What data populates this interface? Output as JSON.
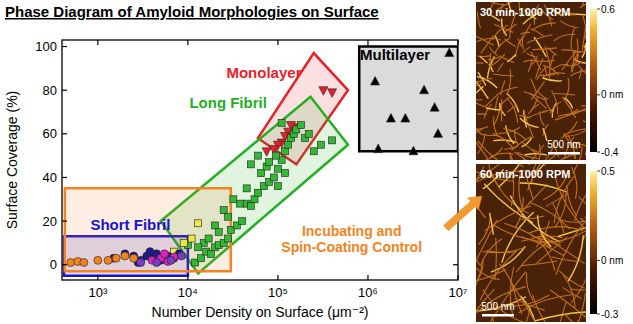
{
  "chart_data": {
    "type": "scatter",
    "title": "Phase Diagram of Amyloid Morphologies on Surface",
    "x_label": "Number Density on Surface (μm⁻²)",
    "y_label": "Surface Coverage (%)",
    "log": "x",
    "grid": false,
    "xlim": [
      400,
      10000000
    ],
    "xticks": [
      {
        "value": 1000,
        "label": "10³"
      },
      {
        "value": 10000,
        "label": "10⁴"
      },
      {
        "value": 100000,
        "label": "10⁵"
      },
      {
        "value": 1000000,
        "label": "10⁶"
      },
      {
        "value": 10000000,
        "label": "10⁷"
      }
    ],
    "ylim": [
      -7,
      103
    ],
    "yticks": [
      0,
      20,
      40,
      60,
      80,
      100
    ],
    "regions": [
      {
        "label": "Multilayer",
        "color": "#000000",
        "corners": [
          [
            800000,
            52
          ],
          [
            10000000,
            52
          ],
          [
            10000000,
            100
          ],
          [
            800000,
            100
          ]
        ],
        "text_x": 2000000,
        "text_y": 96
      },
      {
        "label": "Monolayer",
        "color": "#e8202a",
        "corners": [
          [
            60000,
            58
          ],
          [
            160000,
            46
          ],
          [
            600000,
            80
          ],
          [
            250000,
            97
          ]
        ],
        "text_x": 70000,
        "text_y": 88
      },
      {
        "label": "Long Fibril",
        "color": "#22b022",
        "corners": [
          [
            5000,
            20
          ],
          [
            13000,
            -4
          ],
          [
            600000,
            55
          ],
          [
            230000,
            77
          ]
        ],
        "text_x": 28000,
        "text_y": 74
      },
      {
        "label": "Short Fibril",
        "color": "#1515cc",
        "corners": [
          [
            420,
            -5
          ],
          [
            10000,
            -5
          ],
          [
            10000,
            13
          ],
          [
            420,
            13
          ]
        ],
        "text_x": 2300,
        "text_y": 18
      },
      {
        "label": [
          "Incubating  and",
          "Spin-Coating Control"
        ],
        "color": "#f58220",
        "corners": [
          [
            430,
            -3
          ],
          [
            30000,
            -3
          ],
          [
            30000,
            35
          ],
          [
            430,
            35
          ]
        ],
        "text_x": 660000,
        "text_y": 12
      }
    ],
    "series": [
      {
        "color": "#000000",
        "marker": "triangle-up",
        "x": [
          1200000,
          8000000,
          5500000,
          6000000,
          1800000,
          2600000,
          1300000,
          3200000,
          4200000
        ],
        "values": [
          84,
          97,
          72,
          60,
          67,
          67,
          53,
          52,
          80
        ]
      },
      {
        "color": "#e8202a",
        "marker": "triangle-down",
        "x": [
          320000,
          400000,
          150000,
          140000,
          130000,
          120000,
          110000,
          100000,
          90000,
          75000
        ],
        "values": [
          80,
          79,
          63,
          64,
          61,
          59,
          56,
          55,
          53,
          52
        ]
      },
      {
        "color": "#33b833",
        "marker": "square",
        "x": [
          12000,
          14000,
          16000,
          18000,
          20000,
          22000,
          25000,
          15000,
          17000,
          28000,
          30000,
          35000,
          40000,
          38000,
          45000,
          50000,
          55000,
          60000,
          70000,
          80000,
          65000,
          75000,
          90000,
          100000,
          110000,
          120000,
          130000,
          140000,
          150000,
          160000,
          180000,
          200000,
          220000,
          250000,
          300000,
          400000,
          60000,
          50000,
          80000,
          95000,
          100000,
          120000,
          45000,
          32000,
          25000,
          20000,
          28000,
          13000,
          10000,
          22000,
          110000
        ],
        "values": [
          1,
          3,
          6,
          5,
          8,
          9,
          10,
          10,
          12,
          12,
          16,
          18,
          20,
          28,
          28,
          27,
          30,
          33,
          36,
          38,
          42,
          45,
          40,
          44,
          48,
          52,
          55,
          58,
          60,
          62,
          64,
          58,
          60,
          52,
          55,
          57,
          50,
          46,
          47,
          50,
          36,
          42,
          35,
          30,
          25,
          18,
          22,
          8,
          9,
          15,
          65
        ]
      },
      {
        "color": "#e8e84a",
        "marker": "square",
        "x": [
          7000,
          9000,
          11000,
          13000
        ],
        "values": [
          6,
          10,
          12,
          19
        ]
      },
      {
        "color": "#1c1c8a",
        "marker": "circle",
        "x": [
          1500,
          2000,
          2500,
          3000,
          3500,
          4000,
          4500,
          5000,
          6000,
          7000,
          8000,
          2800,
          3800,
          5500
        ],
        "values": [
          3,
          5,
          4,
          2,
          4,
          3,
          5,
          2,
          4,
          3,
          5,
          1,
          6,
          4
        ]
      },
      {
        "color": "#f58220",
        "marker": "circle",
        "x": [
          500,
          600,
          700,
          1000,
          1300,
          1600,
          2000,
          2500
        ],
        "values": [
          1,
          1.5,
          1,
          2,
          2,
          3,
          4,
          3
        ]
      },
      {
        "color": "#e020c0",
        "marker": "circle",
        "x": [
          4000,
          5000,
          6000,
          7000,
          5500
        ],
        "values": [
          2,
          3,
          1.5,
          3.5,
          5
        ]
      },
      {
        "color": "#7a3cc0",
        "marker": "circle",
        "x": [
          3000,
          4500,
          6500,
          8500
        ],
        "values": [
          1,
          1,
          2,
          4
        ]
      }
    ]
  },
  "images": [
    {
      "title": "30 min-1000 RPM",
      "scale_bar": "500 nm",
      "colorbar": {
        "range": [
          -0.4,
          0.6
        ],
        "ticks": [
          0.6,
          {
            "value": 0,
            "label": "0 nm"
          },
          -0.4
        ]
      }
    },
    {
      "title": "60 min-1000 RPM",
      "scale_bar": "500 nm",
      "colorbar": {
        "range": [
          -0.3,
          0.5
        ],
        "ticks": [
          0.5,
          {
            "value": 0,
            "label": "0 nm"
          },
          -0.3
        ]
      }
    }
  ]
}
